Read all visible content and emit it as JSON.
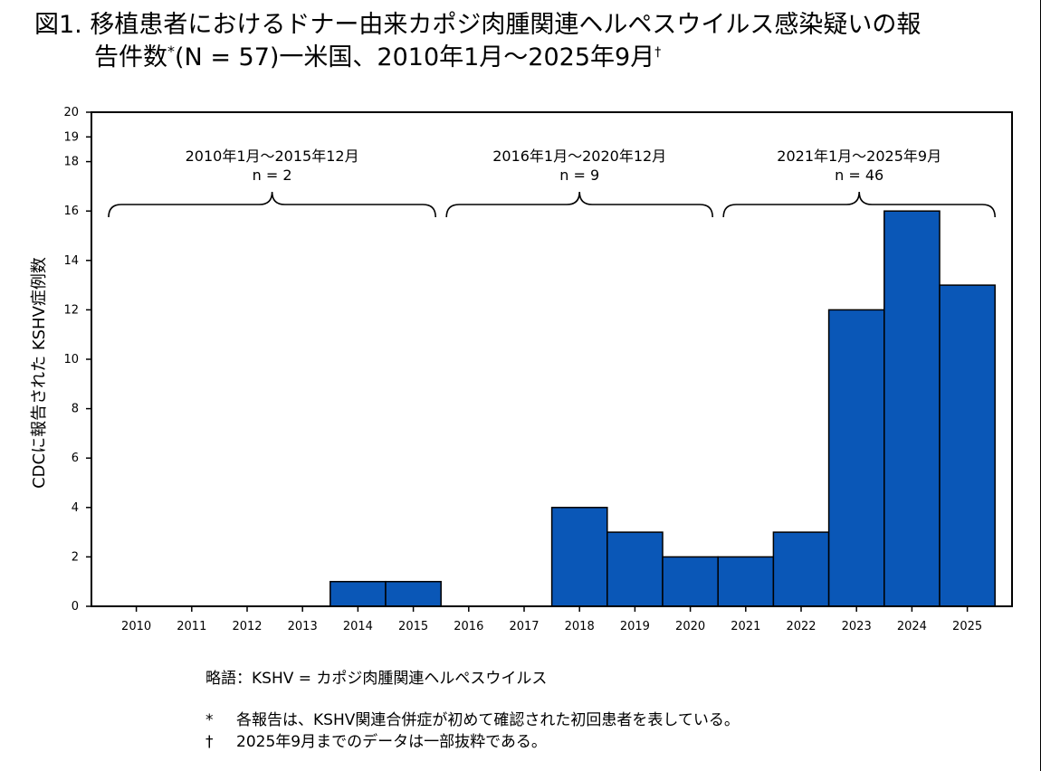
{
  "title": {
    "line1": "図1. 移植患者におけるドナー由来カポジ肉腫関連ヘルペスウイルス感染疑いの報",
    "line2_main": "告件数",
    "line2_asterisk": "*",
    "line2_rest": "(N = 57)一米国、2010年1月〜2025年9月",
    "line2_dagger": "†"
  },
  "chart_data": {
    "type": "bar",
    "categories": [
      "2010",
      "2011",
      "2012",
      "2013",
      "2014",
      "2015",
      "2016",
      "2017",
      "2018",
      "2019",
      "2020",
      "2021",
      "2022",
      "2023",
      "2024",
      "2025"
    ],
    "values": [
      0,
      0,
      0,
      0,
      1,
      1,
      0,
      0,
      4,
      3,
      2,
      2,
      3,
      12,
      16,
      13
    ],
    "ylabel": "CDCに報告された KSHV症例数",
    "xlabel": "",
    "ylim": [
      0,
      20
    ],
    "yticks": [
      0,
      2,
      4,
      6,
      8,
      10,
      12,
      14,
      16,
      18,
      19,
      20
    ],
    "bar_color": "#0a57b7",
    "periods": [
      {
        "label": "2010年1月〜2015年12月",
        "n": "n = 2",
        "from": "2010",
        "to": "2015"
      },
      {
        "label": "2016年1月〜2020年12月",
        "n": "n = 9",
        "from": "2016",
        "to": "2020"
      },
      {
        "label": "2021年1月〜2025年9月",
        "n": "n = 46",
        "from": "2021",
        "to": "2025"
      }
    ]
  },
  "notes": {
    "abbreviation": "略語：KSHV = カポジ肉腫関連ヘルペスウイルス",
    "footnotes": [
      {
        "mark": "*",
        "text": "各報告は、KSHV関連合併症が初めて確認された初回患者を表している。"
      },
      {
        "mark": "†",
        "text": "2025年9月までのデータは一部抜粋である。"
      }
    ]
  }
}
